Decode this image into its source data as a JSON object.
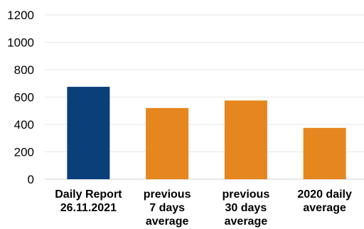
{
  "chart_data": {
    "type": "bar",
    "title": "",
    "xlabel": "",
    "ylabel": "",
    "ylim": [
      0,
      1200
    ],
    "yticks": [
      0,
      200,
      400,
      600,
      800,
      1000,
      1200
    ],
    "grid": true,
    "legend": "none",
    "categories": [
      [
        "Daily Report",
        "26.11.2021"
      ],
      [
        "previous",
        "7 days",
        "average"
      ],
      [
        "previous",
        "30 days",
        "average"
      ],
      [
        "2020 daily",
        "average"
      ]
    ],
    "values": [
      675,
      520,
      575,
      375
    ],
    "colors": [
      "#0b3f7a",
      "#e5861e",
      "#e5861e",
      "#e5861e"
    ]
  }
}
